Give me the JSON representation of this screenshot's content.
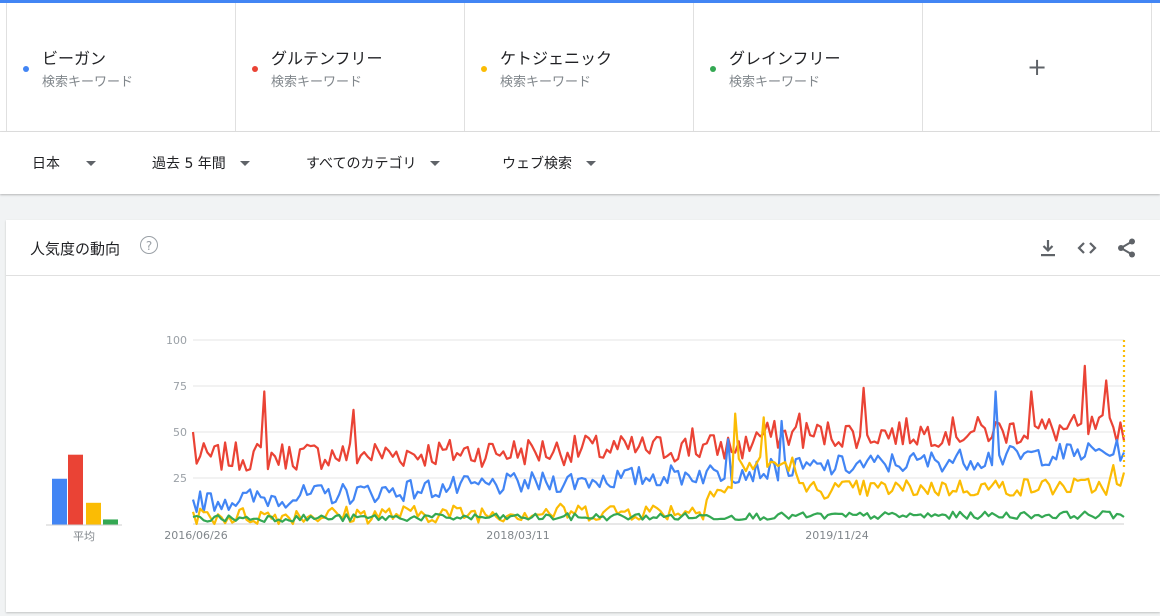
{
  "terms": [
    {
      "name": "ビーガン",
      "sub": "検索キーワード",
      "color": "#4285f4"
    },
    {
      "name": "グルテンフリー",
      "sub": "検索キーワード",
      "color": "#ea4335"
    },
    {
      "name": "ケトジェニック",
      "sub": "検索キーワード",
      "color": "#fbbc04"
    },
    {
      "name": "グレインフリー",
      "sub": "検索キーワード",
      "color": "#34a853"
    }
  ],
  "add_label": "+",
  "filters": {
    "region": "日本",
    "period": "過去 5 年間",
    "category": "すべてのカテゴリ",
    "search_type": "ウェブ検索"
  },
  "card": {
    "title": "人気度の動向",
    "help": "?"
  },
  "chart_data": {
    "type": "line",
    "title": "",
    "ylim": [
      0,
      100
    ],
    "yticks": [
      25,
      50,
      75,
      100
    ],
    "x_tick_labels": [
      "2016/06/26",
      "2018/03/11",
      "2019/11/24"
    ],
    "average_label": "平均",
    "averages": [
      {
        "name": "ビーガン",
        "value": 25
      },
      {
        "name": "グルテンフリー",
        "value": 38
      },
      {
        "name": "ケトジェニック",
        "value": 12
      },
      {
        "name": "グレインフリー",
        "value": 3
      }
    ],
    "series": [
      {
        "name": "グルテンフリー",
        "color": "#ea4335"
      },
      {
        "name": "ビーガン",
        "color": "#4285f4"
      },
      {
        "name": "ケトジェニック",
        "color": "#fbbc04"
      },
      {
        "name": "グレインフリー",
        "color": "#34a853"
      }
    ]
  }
}
